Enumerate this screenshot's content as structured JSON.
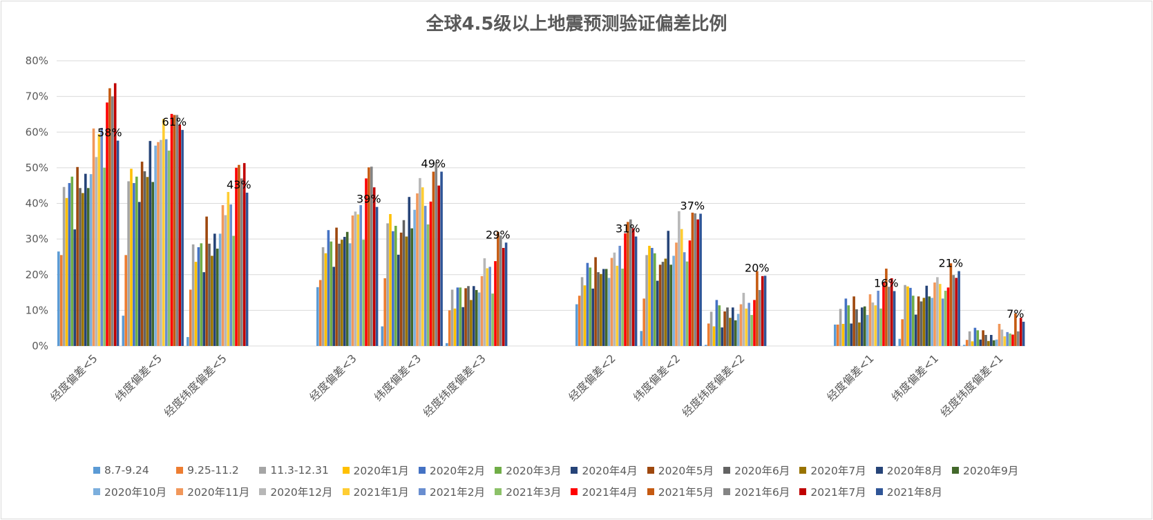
{
  "chart_data": {
    "type": "bar",
    "title": "全球4.5级以上地震预测验证偏差比例",
    "xlabel": "",
    "ylabel": "",
    "ylim": [
      0,
      0.8
    ],
    "y_ticks": [
      "0%",
      "10%",
      "20%",
      "30%",
      "40%",
      "50%",
      "60%",
      "70%",
      "80%"
    ],
    "grid": true,
    "legend_position": "bottom",
    "categories": [
      "经度偏差<5",
      "纬度偏差<5",
      "经度纬度偏差<5",
      "经度偏差<3",
      "纬度偏差<3",
      "经度纬度偏差<3",
      "经度偏差<2",
      "纬度偏差<2",
      "经度纬度偏差<2",
      "经度偏差<1",
      "纬度偏差<1",
      "经度纬度偏差<1"
    ],
    "category_groups": [
      [
        0,
        1,
        2
      ],
      [
        3,
        4,
        5
      ],
      [
        6,
        7,
        8
      ],
      [
        9,
        10,
        11
      ]
    ],
    "data_labels": [
      "58%",
      "61%",
      "43%",
      "39%",
      "49%",
      "29%",
      "31%",
      "37%",
      "20%",
      "16%",
      "21%",
      "7%"
    ],
    "series": [
      {
        "name": "8.7-9.24",
        "color": "#5b9bd5",
        "values": [
          0.265,
          0.085,
          0.025,
          0.165,
          0.055,
          0.008,
          0.117,
          0.042,
          0.003,
          0.06,
          0.02,
          0.003
        ]
      },
      {
        "name": "9.25-11.2",
        "color": "#ed7d31",
        "values": [
          0.255,
          0.255,
          0.158,
          0.185,
          0.19,
          0.1,
          0.141,
          0.133,
          0.063,
          0.06,
          0.075,
          0.017
        ]
      },
      {
        "name": "11.3-12.31",
        "color": "#a5a5a5",
        "values": [
          0.446,
          0.462,
          0.285,
          0.277,
          0.344,
          0.158,
          0.193,
          0.255,
          0.096,
          0.104,
          0.171,
          0.041
        ]
      },
      {
        "name": "2020年1月",
        "color": "#ffc000",
        "values": [
          0.415,
          0.497,
          0.236,
          0.26,
          0.37,
          0.105,
          0.17,
          0.281,
          0.055,
          0.062,
          0.167,
          0.013
        ]
      },
      {
        "name": "2020年2月",
        "color": "#4472c4",
        "values": [
          0.457,
          0.457,
          0.277,
          0.325,
          0.322,
          0.164,
          0.233,
          0.275,
          0.129,
          0.133,
          0.163,
          0.051
        ]
      },
      {
        "name": "2020年3月",
        "color": "#70ad47",
        "values": [
          0.475,
          0.475,
          0.288,
          0.293,
          0.337,
          0.164,
          0.22,
          0.26,
          0.114,
          0.114,
          0.141,
          0.044
        ]
      },
      {
        "name": "2020年4月",
        "color": "#264478",
        "values": [
          0.327,
          0.404,
          0.207,
          0.222,
          0.256,
          0.109,
          0.161,
          0.183,
          0.052,
          0.063,
          0.088,
          0.018
        ]
      },
      {
        "name": "2020年5月",
        "color": "#9e480e",
        "values": [
          0.502,
          0.517,
          0.363,
          0.332,
          0.318,
          0.162,
          0.249,
          0.228,
          0.097,
          0.139,
          0.139,
          0.044
        ]
      },
      {
        "name": "2020年6月",
        "color": "#636363",
        "values": [
          0.443,
          0.49,
          0.287,
          0.287,
          0.353,
          0.168,
          0.207,
          0.236,
          0.108,
          0.103,
          0.125,
          0.031
        ]
      },
      {
        "name": "2020年7月",
        "color": "#997300",
        "values": [
          0.429,
          0.474,
          0.253,
          0.298,
          0.307,
          0.129,
          0.202,
          0.245,
          0.079,
          0.066,
          0.135,
          0.014
        ]
      },
      {
        "name": "2020年8月",
        "color": "#264478",
        "values": [
          0.483,
          0.575,
          0.315,
          0.306,
          0.418,
          0.168,
          0.216,
          0.323,
          0.108,
          0.108,
          0.169,
          0.031
        ]
      },
      {
        "name": "2020年9月",
        "color": "#43682b",
        "values": [
          0.443,
          0.46,
          0.273,
          0.32,
          0.33,
          0.157,
          0.216,
          0.228,
          0.072,
          0.111,
          0.139,
          0.016
        ]
      },
      {
        "name": "2020年10月",
        "color": "#7cafdd",
        "values": [
          0.482,
          0.562,
          0.315,
          0.288,
          0.382,
          0.15,
          0.191,
          0.253,
          0.09,
          0.087,
          0.135,
          0.018
        ]
      },
      {
        "name": "2020年11月",
        "color": "#f1975a",
        "values": [
          0.61,
          0.572,
          0.395,
          0.366,
          0.428,
          0.196,
          0.247,
          0.29,
          0.117,
          0.145,
          0.178,
          0.062
        ]
      },
      {
        "name": "2020年12月",
        "color": "#b7b7b7",
        "values": [
          0.53,
          0.578,
          0.367,
          0.377,
          0.471,
          0.246,
          0.262,
          0.378,
          0.149,
          0.122,
          0.193,
          0.046
        ]
      },
      {
        "name": "2021年1月",
        "color": "#ffcd33",
        "values": [
          0.595,
          0.637,
          0.432,
          0.369,
          0.445,
          0.218,
          0.225,
          0.328,
          0.105,
          0.114,
          0.174,
          0.027
        ]
      },
      {
        "name": "2021年2月",
        "color": "#698ed0",
        "values": [
          0.612,
          0.58,
          0.397,
          0.395,
          0.393,
          0.222,
          0.281,
          0.263,
          0.121,
          0.155,
          0.133,
          0.039
        ]
      },
      {
        "name": "2021年3月",
        "color": "#8cc168",
        "values": [
          0.5,
          0.548,
          0.309,
          0.298,
          0.341,
          0.147,
          0.217,
          0.237,
          0.087,
          0.105,
          0.155,
          0.035
        ]
      },
      {
        "name": "2021年4月",
        "color": "#ff0000",
        "values": [
          0.683,
          0.651,
          0.5,
          0.47,
          0.405,
          0.238,
          0.316,
          0.296,
          0.129,
          0.179,
          0.164,
          0.032
        ]
      },
      {
        "name": "2021年5月",
        "color": "#c55a11",
        "values": [
          0.723,
          0.648,
          0.508,
          0.501,
          0.489,
          0.32,
          0.348,
          0.374,
          0.21,
          0.217,
          0.232,
          0.091
        ]
      },
      {
        "name": "2021年6月",
        "color": "#848484",
        "values": [
          0.7,
          0.648,
          0.47,
          0.503,
          0.515,
          0.31,
          0.355,
          0.372,
          0.157,
          0.166,
          0.199,
          0.041
        ]
      },
      {
        "name": "2021年7月",
        "color": "#c00000",
        "values": [
          0.737,
          0.621,
          0.513,
          0.445,
          0.45,
          0.275,
          0.33,
          0.355,
          0.196,
          0.19,
          0.191,
          0.079
        ]
      },
      {
        "name": "2021年8月",
        "color": "#2f5597",
        "values": [
          0.576,
          0.606,
          0.43,
          0.39,
          0.489,
          0.29,
          0.307,
          0.371,
          0.197,
          0.154,
          0.21,
          0.068
        ]
      }
    ]
  }
}
